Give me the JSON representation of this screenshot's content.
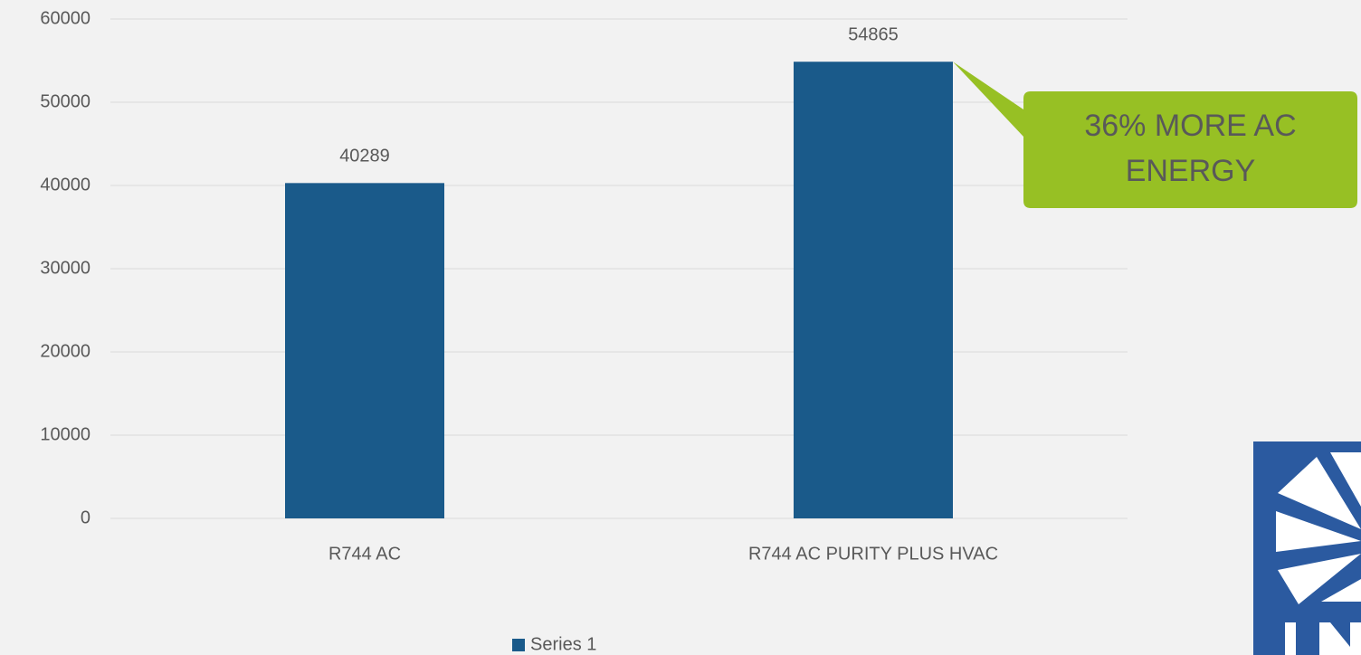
{
  "chart_data": {
    "type": "bar",
    "categories": [
      "R744 AC",
      "R744 AC PURITY PLUS HVAC"
    ],
    "series": [
      {
        "name": "Series 1",
        "color": "#1a5a8a",
        "values": [
          40289,
          54865
        ]
      }
    ],
    "ylim": [
      0,
      60000
    ],
    "yticks": [
      0,
      10000,
      20000,
      30000,
      40000,
      50000,
      60000
    ],
    "grid": true,
    "legend": "bottom",
    "annotation": [
      "36% MORE AC",
      "ENERGY"
    ],
    "annotation_color": "#97c024"
  }
}
